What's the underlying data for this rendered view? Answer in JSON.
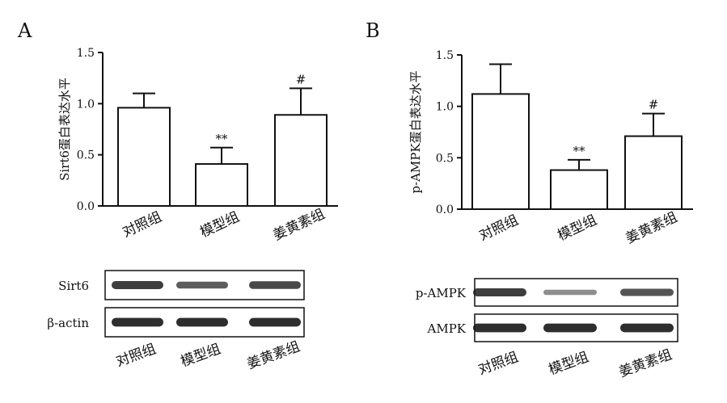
{
  "panels": [
    {
      "panel_label": "A",
      "blot": {
        "rows": [
          {
            "label": "Sirt6",
            "band_intensity": [
              0.85,
              0.65,
              0.78
            ]
          },
          {
            "label": "β-actin",
            "band_intensity": [
              0.95,
              0.95,
              0.95
            ]
          }
        ],
        "lane_labels": [
          "对照组",
          "模型组",
          "姜黄素组"
        ]
      }
    },
    {
      "panel_label": "B",
      "blot": {
        "rows": [
          {
            "label": "p-AMPK",
            "band_intensity": [
              0.85,
              0.35,
              0.7
            ]
          },
          {
            "label": "AMPK",
            "band_intensity": [
              0.95,
              0.95,
              0.95
            ]
          }
        ],
        "lane_labels": [
          "对照组",
          "模型组",
          "姜黄素组"
        ]
      }
    }
  ],
  "chart_data": [
    {
      "type": "bar",
      "title": "",
      "xlabel": "",
      "ylabel": "Sirt6蛋白表达水平",
      "categories": [
        "对照组",
        "模型组",
        "姜黄素组"
      ],
      "values": [
        0.96,
        0.41,
        0.89
      ],
      "error": [
        0.14,
        0.16,
        0.26
      ],
      "annotations": [
        "",
        "**",
        "#"
      ],
      "ylim": [
        0,
        1.5
      ],
      "yticks": [
        "0.0",
        "0.5",
        "1.0",
        "1.5"
      ],
      "grid": false
    },
    {
      "type": "bar",
      "title": "",
      "xlabel": "",
      "ylabel": "p-AMPK蛋白表达水平",
      "categories": [
        "对照组",
        "模型组",
        "姜黄素组"
      ],
      "values": [
        1.12,
        0.38,
        0.71
      ],
      "error": [
        0.29,
        0.1,
        0.22
      ],
      "annotations": [
        "",
        "**",
        "#"
      ],
      "ylim": [
        0,
        1.5
      ],
      "yticks": [
        "0.0",
        "0.5",
        "1.0",
        "1.5"
      ],
      "grid": false
    }
  ]
}
